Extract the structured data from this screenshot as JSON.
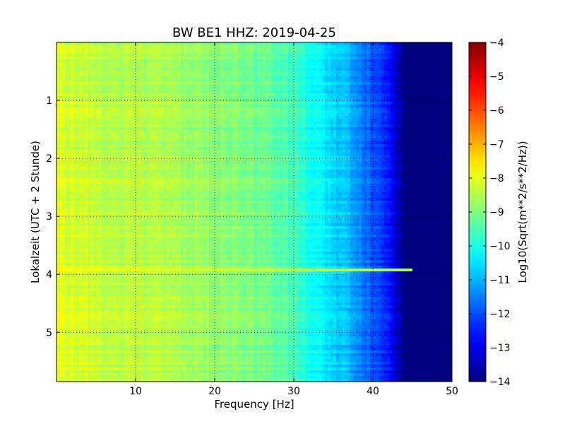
{
  "chart_data": {
    "type": "heatmap",
    "title": "BW BE1 HHZ: 2019-04-25",
    "xlabel": "Frequency [Hz]",
    "ylabel": "Lokalzeit (UTC + 2 Stunde)",
    "xlim": [
      0,
      50
    ],
    "ylim": [
      5.85,
      0
    ],
    "y_inverted": true,
    "grid": true,
    "x_ticks": [
      10,
      20,
      30,
      40,
      50
    ],
    "y_ticks": [
      1,
      2,
      3,
      4,
      5
    ],
    "colormap": "jet",
    "colorbar": {
      "label": "Log10(Sqrt(m**2/s**2/Hz))",
      "range": [
        -14,
        -4
      ],
      "ticks": [
        -4,
        -5,
        -6,
        -7,
        -8,
        -9,
        -10,
        -11,
        -12,
        -13,
        -14
      ]
    },
    "profile": {
      "frequency_hz": [
        0,
        5,
        10,
        15,
        20,
        25,
        30,
        33,
        35,
        38,
        40,
        42,
        43,
        44,
        45,
        50
      ],
      "log10_amplitude": [
        -8.1,
        -8.4,
        -8.5,
        -8.7,
        -8.9,
        -9.2,
        -9.6,
        -10.2,
        -10.6,
        -11.2,
        -12.0,
        -12.6,
        -13.3,
        -14,
        -14,
        -14
      ]
    },
    "event_line": {
      "time_hours": 3.93,
      "max_frequency_hz": 45,
      "log10_amplitude": -7.8
    }
  },
  "colors": {
    "frame": "#000000",
    "grid": "#000000",
    "background": "#ffffff"
  }
}
